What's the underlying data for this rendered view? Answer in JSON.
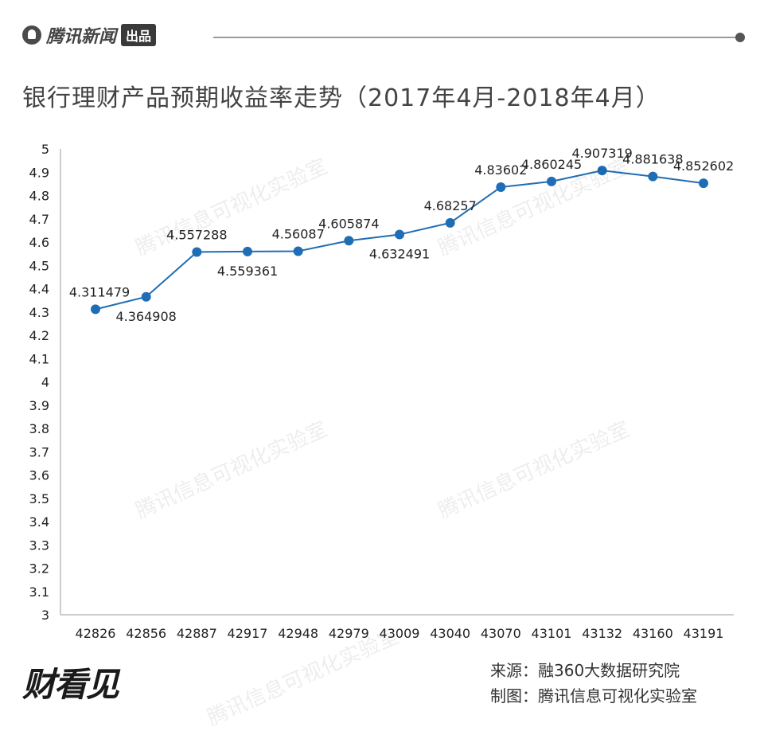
{
  "header": {
    "brand": "腾讯新闻",
    "badge": "出品"
  },
  "title": "银行理财产品预期收益率走势（2017年4月-2018年4月）",
  "watermark": "腾讯信息可视化实验室",
  "footer": {
    "logo": "财看见",
    "source": "来源：融360大数据研究院",
    "credit": "制图：腾讯信息可视化实验室"
  },
  "colors": {
    "line": "#1f6db4",
    "axis": "#999999"
  },
  "chart_data": {
    "type": "line",
    "categories": [
      "42826",
      "42856",
      "42887",
      "42917",
      "42948",
      "42979",
      "43009",
      "43040",
      "43070",
      "43101",
      "43132",
      "43160",
      "43191"
    ],
    "series": [
      {
        "values": [
          4.311479,
          4.364908,
          4.557288,
          4.559361,
          4.56087,
          4.605874,
          4.632491,
          4.68257,
          4.83602,
          4.860245,
          4.907319,
          4.881638,
          4.852602
        ],
        "labels": [
          "4.311479",
          "4.364908",
          "4.557288",
          "4.559361",
          "4.56087",
          "4.605874",
          "4.632491",
          "4.68257",
          "4.83602",
          "4.860245",
          "4.907319",
          "4.881638",
          "4.852602"
        ]
      }
    ],
    "yticks": [
      "3",
      "3.1",
      "3.2",
      "3.3",
      "3.4",
      "3.5",
      "3.6",
      "3.7",
      "3.8",
      "3.9",
      "4",
      "4.1",
      "4.2",
      "4.3",
      "4.4",
      "4.5",
      "4.6",
      "4.7",
      "4.8",
      "4.9",
      "5"
    ],
    "ylim": [
      3,
      5
    ],
    "grid": false
  }
}
